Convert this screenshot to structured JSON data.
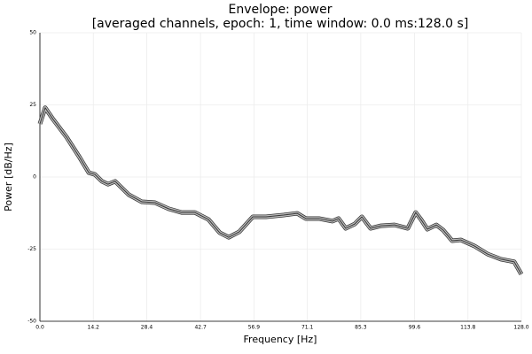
{
  "chart_data": {
    "type": "line",
    "title": "Envelope: power",
    "subtitle": "[averaged channels, epoch: 1, time window: 0.0 ms:128.0 s]",
    "x_label": "Frequency [Hz]",
    "y_label": "Power [dB/Hz]",
    "x": [
      0,
      1.4,
      3.5,
      7.1,
      10.6,
      13,
      14.6,
      16.5,
      18.1,
      20,
      23.6,
      27.1,
      30.6,
      34.2,
      37.7,
      41.2,
      44.8,
      47.8,
      50.2,
      53,
      56.6,
      60.1,
      64.8,
      68.4,
      70.7,
      74.2,
      77.8,
      79.4,
      81.3,
      83.7,
      85.6,
      87.9,
      90.7,
      94.3,
      97.8,
      99.9,
      101.3,
      103,
      105.4,
      107.2,
      109.6,
      111.9,
      115.5,
      119,
      122.6,
      126.1,
      128
    ],
    "series": [
      {
        "color": "#333333",
        "values": [
          18.4,
          24,
          20,
          13.8,
          6.7,
          1.5,
          0.9,
          -1.5,
          -2.5,
          -1.5,
          -6.1,
          -8.6,
          -8.9,
          -11,
          -12.3,
          -12.3,
          -14.7,
          -19.3,
          -20.9,
          -19,
          -13.8,
          -13.8,
          -13.2,
          -12.6,
          -14.4,
          -14.4,
          -15.3,
          -14.4,
          -17.8,
          -16.3,
          -13.8,
          -17.8,
          -16.9,
          -16.6,
          -17.8,
          -12.3,
          -14.7,
          -18.1,
          -16.6,
          -18.4,
          -22.1,
          -21.8,
          -23.9,
          -26.7,
          -28.5,
          -29.4,
          -33.7
        ]
      }
    ],
    "xlim": [
      0,
      128
    ],
    "xticks": [
      {
        "value": 0,
        "label": "0.0"
      },
      14.2,
      28.4,
      42.7,
      56.9,
      71.1,
      85.3,
      99.6,
      113.8,
      {
        "value": 128,
        "label": "128.0"
      }
    ],
    "ylim": [
      -50,
      50
    ],
    "yticks": [
      -50,
      -25,
      0,
      25,
      50
    ],
    "grid": true
  }
}
